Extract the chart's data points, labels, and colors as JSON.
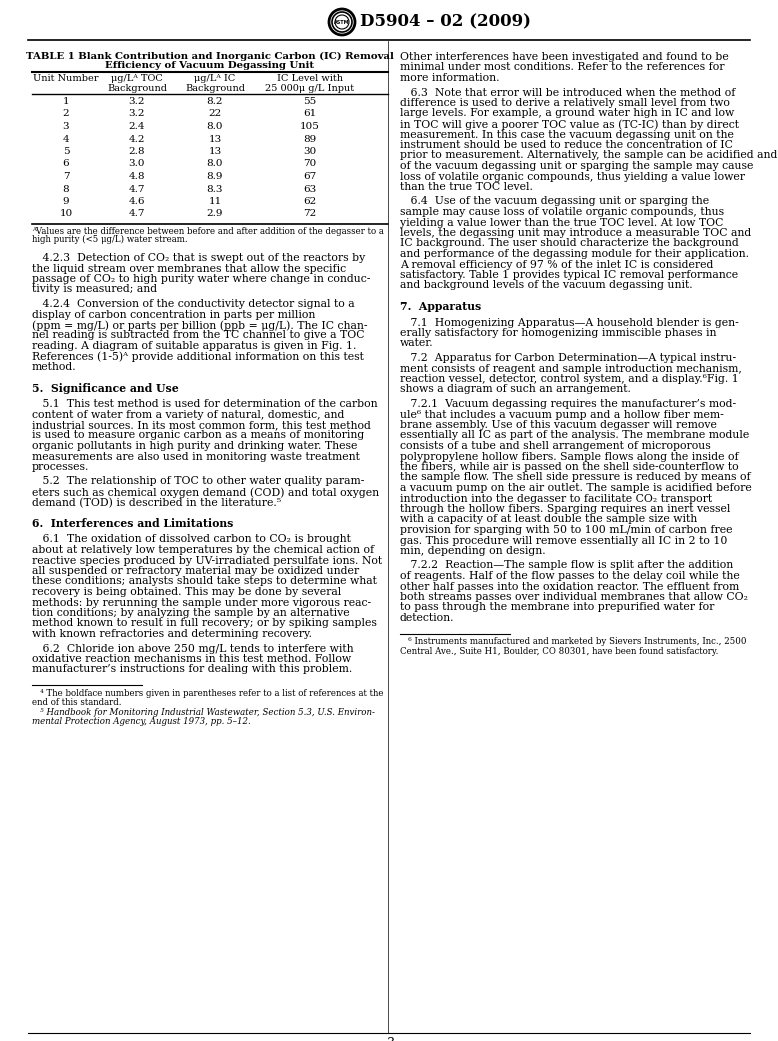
{
  "page_title": "D5904 – 02 (2009)",
  "bg_color": "#ffffff",
  "table_title_line1": "TABLE 1 Blank Contribution and Inorganic Carbon (IC) Removal",
  "table_title_line2": "Efficiency of Vacuum Degassing Unit",
  "table_headers": [
    "Unit Number",
    "μg/Lᴬ TOC\nBackground",
    "μg/Lᴬ IC\nBackground",
    "IC Level with\n25 000μ g/L Input"
  ],
  "table_data": [
    [
      "1",
      "3.2",
      "8.2",
      "55"
    ],
    [
      "2",
      "3.2",
      "22",
      "61"
    ],
    [
      "3",
      "2.4",
      "8.0",
      "105"
    ],
    [
      "4",
      "4.2",
      "13",
      "89"
    ],
    [
      "5",
      "2.8",
      "13",
      "30"
    ],
    [
      "6",
      "3.0",
      "8.0",
      "70"
    ],
    [
      "7",
      "4.8",
      "8.9",
      "67"
    ],
    [
      "8",
      "4.7",
      "8.3",
      "63"
    ],
    [
      "9",
      "4.6",
      "11",
      "62"
    ],
    [
      "10",
      "4.7",
      "2.9",
      "72"
    ]
  ],
  "table_footnote_line1": "ᴬValues are the difference between before and after addition of the degasser to a",
  "table_footnote_line2": "high purity (<5 μg/L) water stream.",
  "left_col_paragraphs": [
    {
      "bold": false,
      "lines": [
        "   4.2.3  Detection of CO₂ that is swept out of the reactors by",
        "the liquid stream over membranes that allow the specific",
        "passage of CO₂ to high purity water where change in conduc-",
        "tivity is measured; and"
      ]
    },
    {
      "bold": false,
      "lines": [
        "   4.2.4  Conversion of the conductivity detector signal to a",
        "display of carbon concentration in parts per million",
        "(ppm = mg/L) or parts per billion (ppb = μg/L). The IC chan-",
        "nel reading is subtracted from the TC channel to give a TOC",
        "reading. A diagram of suitable apparatus is given in Fig. 1.",
        "References (1-5)ᴬ provide additional information on this test",
        "method."
      ]
    },
    {
      "bold": true,
      "lines": [
        "5.  Significance and Use"
      ]
    },
    {
      "bold": false,
      "lines": [
        "   5.1  This test method is used for determination of the carbon",
        "content of water from a variety of natural, domestic, and",
        "industrial sources. In its most common form, this test method",
        "is used to measure organic carbon as a means of monitoring",
        "organic pollutants in high purity and drinking water. These",
        "measurements are also used in monitoring waste treatment",
        "processes."
      ]
    },
    {
      "bold": false,
      "lines": [
        "   5.2  The relationship of TOC to other water quality param-",
        "eters such as chemical oxygen demand (COD) and total oxygen",
        "demand (TOD) is described in the literature.⁵"
      ]
    },
    {
      "bold": true,
      "lines": [
        "6.  Interferences and Limitations"
      ]
    },
    {
      "bold": false,
      "lines": [
        "   6.1  The oxidation of dissolved carbon to CO₂ is brought",
        "about at relatively low temperatures by the chemical action of",
        "reactive species produced by UV-irradiated persulfate ions. Not",
        "all suspended or refractory material may be oxidized under",
        "these conditions; analysts should take steps to determine what",
        "recovery is being obtained. This may be done by several",
        "methods: by rerunning the sample under more vigorous reac-",
        "tion conditions; by analyzing the sample by an alternative",
        "method known to result in full recovery; or by spiking samples",
        "with known refractories and determining recovery."
      ]
    },
    {
      "bold": false,
      "lines": [
        "   6.2  Chloride ion above 250 mg/L tends to interfere with",
        "oxidative reaction mechanisms in this test method. Follow",
        "manufacturer’s instructions for dealing with this problem."
      ]
    }
  ],
  "left_footnotes": [
    {
      "italic": false,
      "lines": [
        "   ⁴ The boldface numbers given in parentheses refer to a list of references at the",
        "end of this standard."
      ]
    },
    {
      "italic": true,
      "lines": [
        "   ⁵ Handbook for Monitoring Industrial Wastewater, Section 5.3, U.S. Environ-",
        "mental Protection Agency, August 1973, pp. 5–12."
      ]
    }
  ],
  "right_col_paragraphs": [
    {
      "bold": false,
      "indent": false,
      "lines": [
        "Other interferences have been investigated and found to be",
        "minimal under most conditions. Refer to the references for",
        "more information."
      ]
    },
    {
      "bold": false,
      "indent": true,
      "lines": [
        "   6.3  Note that error will be introduced when the method of",
        "difference is used to derive a relatively small level from two",
        "large levels. For example, a ground water high in IC and low",
        "in TOC will give a poorer TOC value as (TC-IC) than by direct",
        "measurement. In this case the vacuum degassing unit on the",
        "instrument should be used to reduce the concentration of IC",
        "prior to measurement. Alternatively, the sample can be acidified and sparged prior to introduction into the instrument. Use",
        "of the vacuum degassing unit or sparging the sample may cause",
        "loss of volatile organic compounds, thus yielding a value lower",
        "than the true TOC level."
      ]
    },
    {
      "bold": false,
      "indent": true,
      "lines": [
        "   6.4  Use of the vacuum degassing unit or sparging the",
        "sample may cause loss of volatile organic compounds, thus",
        "yielding a value lower than the true TOC level. At low TOC",
        "levels, the degassing unit may introduce a measurable TOC and",
        "IC background. The user should characterize the background",
        "and performance of the degassing module for their application.",
        "A removal efficiency of 97 % of the inlet IC is considered",
        "satisfactory. Table 1 provides typical IC removal performance",
        "and background levels of the vacuum degassing unit."
      ]
    },
    {
      "bold": true,
      "indent": false,
      "lines": [
        "7.  Apparatus"
      ]
    },
    {
      "bold": false,
      "indent": false,
      "lines": [
        "   7.1  Homogenizing Apparatus—A household blender is gen-",
        "erally satisfactory for homogenizing immiscible phases in",
        "water."
      ]
    },
    {
      "bold": false,
      "indent": false,
      "lines": [
        "   7.2  Apparatus for Carbon Determination—A typical instru-",
        "ment consists of reagent and sample introduction mechanism,",
        "reaction vessel, detector, control system, and a display.⁶Fig. 1",
        "shows a diagram of such an arrangement."
      ]
    },
    {
      "bold": false,
      "indent": true,
      "lines": [
        "   7.2.1  Vacuum degassing requires the manufacturer’s mod-",
        "ule⁶ that includes a vacuum pump and a hollow fiber mem-",
        "brane assembly. Use of this vacuum degasser will remove",
        "essentially all IC as part of the analysis. The membrane module",
        "consists of a tube and shell arrangement of microporous",
        "polypropylene hollow fibers. Sample flows along the inside of",
        "the fibers, while air is passed on the shell side-counterflow to",
        "the sample flow. The shell side pressure is reduced by means of",
        "a vacuum pump on the air outlet. The sample is acidified before",
        "introduction into the degasser to facilitate CO₂ transport",
        "through the hollow fibers. Sparging requires an inert vessel",
        "with a capacity of at least double the sample size with",
        "provision for sparging with 50 to 100 mL/min of carbon free",
        "gas. This procedure will remove essentially all IC in 2 to 10",
        "min, depending on design."
      ]
    },
    {
      "bold": false,
      "indent": true,
      "lines": [
        "   7.2.2  Reaction—The sample flow is split after the addition",
        "of reagents. Half of the flow passes to the delay coil while the",
        "other half passes into the oxidation reactor. The effluent from",
        "both streams passes over individual membranes that allow CO₂",
        "to pass through the membrane into prepurified water for",
        "detection."
      ]
    }
  ],
  "right_footnote_lines": [
    "   ⁶ Instruments manufactured and marketed by Sievers Instruments, Inc., 2500",
    "Central Ave., Suite H1, Boulder, CO 80301, have been found satisfactory."
  ],
  "page_number": "3"
}
